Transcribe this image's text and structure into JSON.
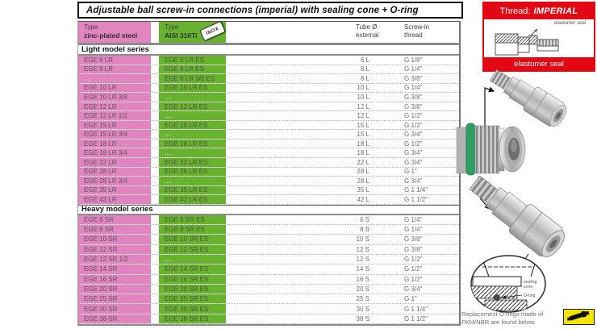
{
  "page_title": "Adjustable ball screw-in connections (imperial) with sealing cone + O-ring",
  "thread_box": {
    "label": "Thread:",
    "value": "IMPERIAL",
    "seal_pointer_note": "elastomer seal",
    "bottom_label": "elastomer seal"
  },
  "table": {
    "headers": {
      "col1_line1": "Type",
      "col1_line2": "zinc-plated steel",
      "col2_line1": "Type",
      "col2_line2": "AISI 316Ti",
      "badge": "INOX",
      "col3_line1": "Tube Ø",
      "col3_line2": "external",
      "col4_line1": "Screw-in",
      "col4_line2": "thread"
    },
    "sections": [
      {
        "title": "Light model series",
        "rows": [
          [
            "EGE 6 LR",
            "EGE 6 LR ES",
            "6 L",
            "G 1/8\""
          ],
          [
            "EGE 8 LR",
            "EGE 8 LR ES",
            "8 L",
            "G 1/4\""
          ],
          [
            "....",
            "EGE 8 LR 3/8 ES",
            "8 L",
            "G 3/8\""
          ],
          [
            "EGE 10 LR",
            "EGE 10 LR ES",
            "10 L",
            "G 1/4\""
          ],
          [
            "EGE 10 LR 3/8",
            "....",
            "10 L",
            "G 3/8\""
          ],
          [
            "EGE 12 LR",
            "EGE 12 LR ES",
            "12 L",
            "G 3/8\""
          ],
          [
            "EGE 12 LR 1/2",
            "....",
            "12 L",
            "G 1/2\""
          ],
          [
            "EGE 15 LR",
            "EGE 15 LR ES",
            "15 L",
            "G 1/2\""
          ],
          [
            "EGE 15 LR 3/4",
            "....",
            "15 L",
            "G 3/4\""
          ],
          [
            "EGE 18 LR",
            "EGE 18 LR ES",
            "18 L",
            "G 1/2\""
          ],
          [
            "EGE 18 LR 3/4",
            "....",
            "18 L",
            "G 3/4\""
          ],
          [
            "EGE 22 LR",
            "EGE 22 LR ES",
            "22 L",
            "G 3/4\""
          ],
          [
            "EGE 28 LR",
            "EGE 28 LR ES",
            "28 L",
            "G 1\""
          ],
          [
            "EGE 28 LR 3/4",
            "....",
            "28 L",
            "G 3/4\""
          ],
          [
            "EGE 35 LR",
            "EGE 35 LR ES",
            "35 L",
            "G 1 1/4\""
          ],
          [
            "EGE 42 LR",
            "EGE 42 LR ES",
            "42 L",
            "G 1 1/2\""
          ]
        ]
      },
      {
        "title": "Heavy model series",
        "rows": [
          [
            "EGE 6 SR",
            "EGE 6 SR ES",
            "6 S",
            "G 1/4\""
          ],
          [
            "EGE 8 SR",
            "EGE 8 SR ES",
            "8 S",
            "G 1/4\""
          ],
          [
            "EGE 10 SR",
            "EGE 10 SR ES",
            "10 S",
            "G 3/8\""
          ],
          [
            "EGE 12 SR",
            "EGE 12 SR ES",
            "12 S",
            "G 3/8\""
          ],
          [
            "EGE 12 SR 1/2",
            "....",
            "12 S",
            "G 1/2\""
          ],
          [
            "EGE 14 SR",
            "EGE 14 SR ES",
            "14 S",
            "G 1/2\""
          ],
          [
            "EGE 16 SR",
            "EGE 16 SR ES",
            "16 S",
            "G 1/2\""
          ],
          [
            "EGE 20 SR",
            "EGE 20 SR ES",
            "20 S",
            "G 3/4\""
          ],
          [
            "EGE 25 SR",
            "EGE 25 SR ES",
            "25 S",
            "G 1\""
          ],
          [
            "EGE 30 SR",
            "EGE 30 SR ES",
            "30 S",
            "G 1 1/4\""
          ],
          [
            "EGE 38 SR",
            "EGE 38 SR ES",
            "38 S",
            "G 1 1/2\""
          ]
        ]
      }
    ]
  },
  "diagram_labels": {
    "sealing_cone_l1": "sealing",
    "sealing_cone_l2": "cone",
    "o_ring": "O-ring"
  },
  "notes": {
    "line1": "Replacement O-rings made of",
    "line2": "FKM/NBR are found below."
  },
  "colors": {
    "zinc_column_pink": "#e184c0",
    "aisi_column_green": "#68b32d",
    "thread_box_red": "#e30613",
    "badge_yellow": "#f2e600",
    "seal_ring_green": "#2f9e63"
  }
}
